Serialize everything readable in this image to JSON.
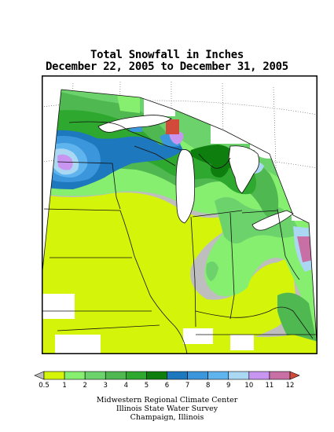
{
  "title": {
    "line1": "Total Snowfall in Inches",
    "line2": "December 22, 2005 to December 31, 2005"
  },
  "legend": {
    "labels": [
      "0.5",
      "1",
      "2",
      "3",
      "4",
      "5",
      "6",
      "7",
      "8",
      "9",
      "10",
      "11",
      "12"
    ],
    "colors": [
      "#bebebe",
      "#d4f50a",
      "#86ef70",
      "#6cd26c",
      "#50b850",
      "#2ea82e",
      "#0e7e0e",
      "#1e78be",
      "#3c96dc",
      "#60b4ee",
      "#aad8f2",
      "#c896f0",
      "#c870a6",
      "#d24a3a"
    ]
  },
  "colors": {
    "no_data": "#ffffff",
    "trace": "#bebebe",
    "lake": "#ffffff"
  },
  "credits": {
    "line1": "Midwestern Regional Climate Center",
    "line2": "Illinois State Water Survey",
    "line3": "Champaign, Illinois"
  }
}
